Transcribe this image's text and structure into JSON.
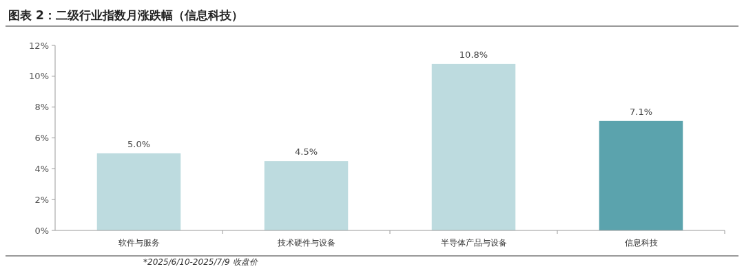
{
  "chart_data": {
    "type": "bar",
    "title": "图表 2：二级行业指数月涨跌幅（信息科技）",
    "categories": [
      "软件与服务",
      "技术硬件与设备",
      "半导体产品与设备",
      "信息科技"
    ],
    "values": [
      5.0,
      4.5,
      10.8,
      7.1
    ],
    "colors": [
      "#bddbdf",
      "#bddbdf",
      "#bddbdf",
      "#5ba3ad"
    ],
    "value_labels": [
      "5.0%",
      "4.5%",
      "10.8%",
      "7.1%"
    ],
    "ylim": [
      0,
      12
    ],
    "yticks": [
      {
        "value": 0,
        "label": "0%"
      },
      {
        "value": 2,
        "label": "2%"
      },
      {
        "value": 4,
        "label": "4%"
      },
      {
        "value": 6,
        "label": "6%"
      },
      {
        "value": 8,
        "label": "8%"
      },
      {
        "value": 10,
        "label": "10%"
      },
      {
        "value": 12,
        "label": "12%"
      }
    ],
    "grid": false,
    "annotations": [
      "*2025/6/10-2025/7/9 收盘价"
    ]
  }
}
